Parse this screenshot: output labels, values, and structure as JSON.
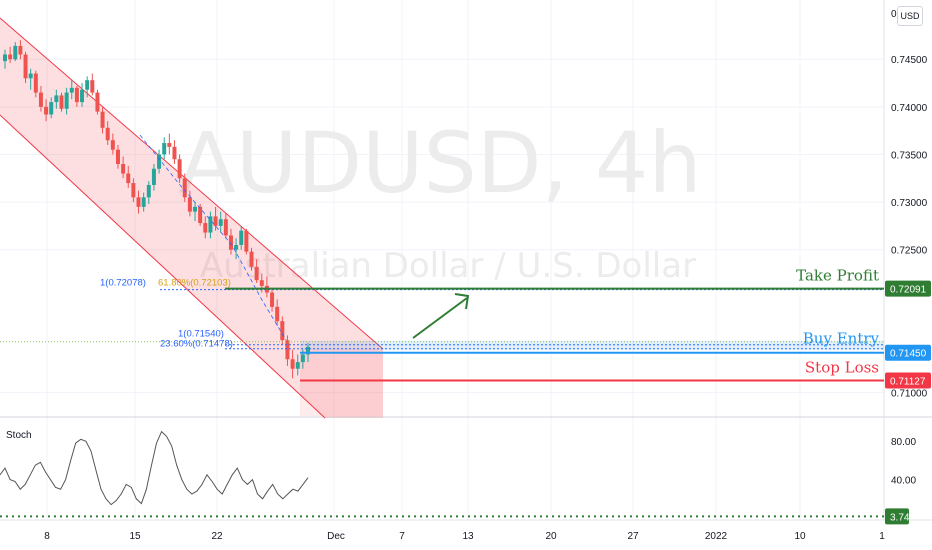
{
  "currency_button": "USD",
  "chart_data": {
    "type": "candlestick",
    "symbol": "AUDUSD, 4h",
    "description": "Australian Dollar / U.S. Dollar",
    "price_axis": {
      "ticks": [
        "0.74500",
        "0.74000",
        "0.73500",
        "0.73000",
        "0.72500",
        "0.71000"
      ],
      "tick_values": [
        0.745,
        0.74,
        0.735,
        0.73,
        0.725,
        0.71
      ],
      "range": [
        0.7088,
        0.7508
      ]
    },
    "time_axis": {
      "ticks": [
        "8",
        "15",
        "22",
        "Dec",
        "7",
        "13",
        "20",
        "27",
        "2022",
        "10",
        "1"
      ]
    },
    "levels": {
      "take_profit": {
        "label": "Take Profit",
        "value": "0.72091",
        "price": 0.72091,
        "color": "#2e7d32"
      },
      "buy_entry": {
        "label": "Buy Entry",
        "value": "0.71450",
        "price": 0.7145,
        "color": "#2196f3"
      },
      "stop_loss": {
        "label": "Stop Loss",
        "value": "0.71127",
        "price": 0.71127,
        "color": "#f23645"
      }
    },
    "fib_labels": {
      "f1_upper": "1(0.72078)",
      "f61": "61.80%(0.72103)",
      "f1_lower": "1(0.71540)",
      "f23": "23.60%(0.71478)"
    },
    "stoch": {
      "label": "Stoch",
      "ticks": [
        "80.00",
        "40.00"
      ],
      "tick_values": [
        80,
        40
      ],
      "range": [
        0,
        100
      ],
      "current": "3.74",
      "current_value": 3.74,
      "values": [
        45,
        52,
        40,
        38,
        30,
        35,
        45,
        55,
        58,
        48,
        40,
        32,
        30,
        40,
        60,
        78,
        82,
        80,
        70,
        50,
        30,
        20,
        14,
        18,
        25,
        35,
        32,
        20,
        15,
        30,
        55,
        78,
        90,
        85,
        75,
        55,
        40,
        30,
        25,
        28,
        35,
        45,
        38,
        30,
        25,
        35,
        45,
        52,
        40,
        35,
        40,
        25,
        20,
        28,
        35,
        25,
        20,
        25,
        30,
        28,
        35,
        42
      ]
    },
    "candles": [
      [
        0.7448,
        0.746,
        0.744,
        0.7455
      ],
      [
        0.7455,
        0.7463,
        0.7446,
        0.745
      ],
      [
        0.745,
        0.7468,
        0.7448,
        0.7464
      ],
      [
        0.7464,
        0.747,
        0.745,
        0.7455
      ],
      [
        0.7455,
        0.7458,
        0.7425,
        0.743
      ],
      [
        0.743,
        0.744,
        0.7418,
        0.7435
      ],
      [
        0.7435,
        0.7438,
        0.741,
        0.7415
      ],
      [
        0.7415,
        0.7422,
        0.7395,
        0.74
      ],
      [
        0.74,
        0.7408,
        0.7385,
        0.7392
      ],
      [
        0.7392,
        0.741,
        0.7388,
        0.7405
      ],
      [
        0.7405,
        0.7418,
        0.7398,
        0.7412
      ],
      [
        0.7412,
        0.7415,
        0.7395,
        0.7398
      ],
      [
        0.7398,
        0.742,
        0.7392,
        0.7415
      ],
      [
        0.7415,
        0.7428,
        0.7408,
        0.742
      ],
      [
        0.742,
        0.7422,
        0.74,
        0.7405
      ],
      [
        0.7405,
        0.7425,
        0.74,
        0.7418
      ],
      [
        0.7418,
        0.7432,
        0.741,
        0.7428
      ],
      [
        0.7428,
        0.7435,
        0.7412,
        0.7415
      ],
      [
        0.7415,
        0.7418,
        0.7392,
        0.7395
      ],
      [
        0.7395,
        0.74,
        0.7372,
        0.7378
      ],
      [
        0.7378,
        0.7385,
        0.736,
        0.7365
      ],
      [
        0.7365,
        0.7372,
        0.735,
        0.7355
      ],
      [
        0.7355,
        0.736,
        0.7335,
        0.734
      ],
      [
        0.734,
        0.7348,
        0.7325,
        0.733
      ],
      [
        0.733,
        0.7338,
        0.7315,
        0.732
      ],
      [
        0.732,
        0.7325,
        0.73,
        0.7305
      ],
      [
        0.7305,
        0.7312,
        0.7288,
        0.7295
      ],
      [
        0.7295,
        0.731,
        0.729,
        0.7305
      ],
      [
        0.7305,
        0.7322,
        0.7298,
        0.7318
      ],
      [
        0.7318,
        0.734,
        0.7312,
        0.7335
      ],
      [
        0.7335,
        0.7355,
        0.733,
        0.735
      ],
      [
        0.735,
        0.7368,
        0.7345,
        0.7362
      ],
      [
        0.7362,
        0.7372,
        0.735,
        0.7358
      ],
      [
        0.7358,
        0.7365,
        0.734,
        0.7345
      ],
      [
        0.7345,
        0.735,
        0.732,
        0.7325
      ],
      [
        0.7325,
        0.733,
        0.73,
        0.7305
      ],
      [
        0.7305,
        0.7312,
        0.7285,
        0.729
      ],
      [
        0.729,
        0.73,
        0.728,
        0.7295
      ],
      [
        0.7295,
        0.7298,
        0.7275,
        0.7278
      ],
      [
        0.7278,
        0.7285,
        0.7262,
        0.7268
      ],
      [
        0.7268,
        0.729,
        0.7262,
        0.7285
      ],
      [
        0.7285,
        0.7295,
        0.727,
        0.7275
      ],
      [
        0.7275,
        0.729,
        0.7268,
        0.7282
      ],
      [
        0.7282,
        0.7288,
        0.7262,
        0.7265
      ],
      [
        0.7265,
        0.7272,
        0.7245,
        0.725
      ],
      [
        0.725,
        0.7262,
        0.724,
        0.7255
      ],
      [
        0.7255,
        0.7275,
        0.725,
        0.727
      ],
      [
        0.727,
        0.7272,
        0.7245,
        0.7248
      ],
      [
        0.7248,
        0.7252,
        0.7228,
        0.7232
      ],
      [
        0.7232,
        0.724,
        0.7215,
        0.7218
      ],
      [
        0.7218,
        0.7225,
        0.7205,
        0.7212
      ],
      [
        0.7212,
        0.7222,
        0.72,
        0.7205
      ],
      [
        0.7205,
        0.721,
        0.7185,
        0.719
      ],
      [
        0.719,
        0.7198,
        0.717,
        0.7175
      ],
      [
        0.7175,
        0.718,
        0.715,
        0.7155
      ],
      [
        0.7155,
        0.716,
        0.7128,
        0.7135
      ],
      [
        0.7135,
        0.7145,
        0.7115,
        0.7125
      ],
      [
        0.7125,
        0.714,
        0.7118,
        0.7132
      ],
      [
        0.7132,
        0.7145,
        0.7125,
        0.714
      ],
      [
        0.714,
        0.7152,
        0.7132,
        0.7148
      ]
    ]
  }
}
